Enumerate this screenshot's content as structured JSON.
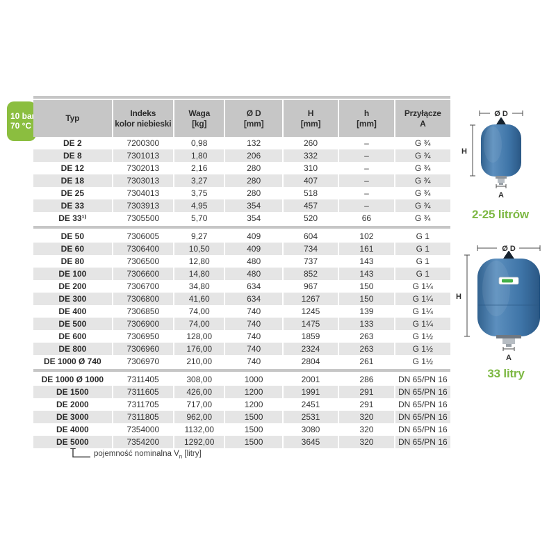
{
  "badge": {
    "pressure": "10 bar",
    "temperature": "70 °C"
  },
  "table": {
    "columns": [
      [
        "Typ",
        ""
      ],
      [
        "Indeks",
        "kolor niebieski"
      ],
      [
        "Waga",
        "[kg]"
      ],
      [
        "Ø D",
        "[mm]"
      ],
      [
        "H",
        "[mm]"
      ],
      [
        "h",
        "[mm]"
      ],
      [
        "Przyłącze",
        "A"
      ]
    ],
    "groups": [
      [
        [
          "DE 2",
          "7200300",
          "0,98",
          "132",
          "260",
          "–",
          "G ¾"
        ],
        [
          "DE 8",
          "7301013",
          "1,80",
          "206",
          "332",
          "–",
          "G ¾"
        ],
        [
          "DE 12",
          "7302013",
          "2,16",
          "280",
          "310",
          "–",
          "G ¾"
        ],
        [
          "DE 18",
          "7303013",
          "3,27",
          "280",
          "407",
          "–",
          "G ¾"
        ],
        [
          "DE 25",
          "7304013",
          "3,75",
          "280",
          "518",
          "–",
          "G ¾"
        ],
        [
          "DE 33",
          "7303913",
          "4,95",
          "354",
          "457",
          "–",
          "G ¾"
        ],
        [
          "DE 33¹⁾",
          "7305500",
          "5,70",
          "354",
          "520",
          "66",
          "G ¾"
        ]
      ],
      [
        [
          "DE 50",
          "7306005",
          "9,27",
          "409",
          "604",
          "102",
          "G 1"
        ],
        [
          "DE 60",
          "7306400",
          "10,50",
          "409",
          "734",
          "161",
          "G 1"
        ],
        [
          "DE 80",
          "7306500",
          "12,80",
          "480",
          "737",
          "143",
          "G 1"
        ],
        [
          "DE 100",
          "7306600",
          "14,80",
          "480",
          "852",
          "143",
          "G 1"
        ],
        [
          "DE 200",
          "7306700",
          "34,80",
          "634",
          "967",
          "150",
          "G 1¼"
        ],
        [
          "DE 300",
          "7306800",
          "41,60",
          "634",
          "1267",
          "150",
          "G 1¼"
        ],
        [
          "DE 400",
          "7306850",
          "74,00",
          "740",
          "1245",
          "139",
          "G 1¼"
        ],
        [
          "DE 500",
          "7306900",
          "74,00",
          "740",
          "1475",
          "133",
          "G 1¼"
        ],
        [
          "DE 600",
          "7306950",
          "128,00",
          "740",
          "1859",
          "263",
          "G 1½"
        ],
        [
          "DE 800",
          "7306960",
          "176,00",
          "740",
          "2324",
          "263",
          "G 1½"
        ],
        [
          "DE 1000 Ø 740",
          "7306970",
          "210,00",
          "740",
          "2804",
          "261",
          "G 1½"
        ]
      ],
      [
        [
          "DE 1000 Ø 1000",
          "7311405",
          "308,00",
          "1000",
          "2001",
          "286",
          "DN 65/PN 16"
        ],
        [
          "DE 1500",
          "7311605",
          "426,00",
          "1200",
          "1991",
          "291",
          "DN 65/PN 16"
        ],
        [
          "DE 2000",
          "7311705",
          "717,00",
          "1200",
          "2451",
          "291",
          "DN 65/PN 16"
        ],
        [
          "DE 3000",
          "7311805",
          "962,00",
          "1500",
          "2531",
          "320",
          "DN 65/PN 16"
        ],
        [
          "DE 4000",
          "7354000",
          "1132,00",
          "1500",
          "3080",
          "320",
          "DN 65/PN 16"
        ],
        [
          "DE 5000",
          "7354200",
          "1292,00",
          "1500",
          "3645",
          "320",
          "DN 65/PN 16"
        ]
      ]
    ]
  },
  "footnote": {
    "prefix": "pojemność nominalna V",
    "subscript": "n",
    "suffix": " [litry]"
  },
  "diagrams": [
    {
      "caption": "2-25 litrów",
      "labels": {
        "diameter": "Ø D",
        "height": "H",
        "connection": "A"
      }
    },
    {
      "caption": "33 litry",
      "labels": {
        "diameter": "Ø D",
        "height": "H",
        "connection": "A"
      }
    }
  ],
  "colors": {
    "badge_green": "#8bbe3f",
    "caption_green": "#7db843",
    "header_gray": "#c6c6c6",
    "stripe_gray": "#e5e5e5",
    "vessel_blue": "#3e74a7"
  }
}
